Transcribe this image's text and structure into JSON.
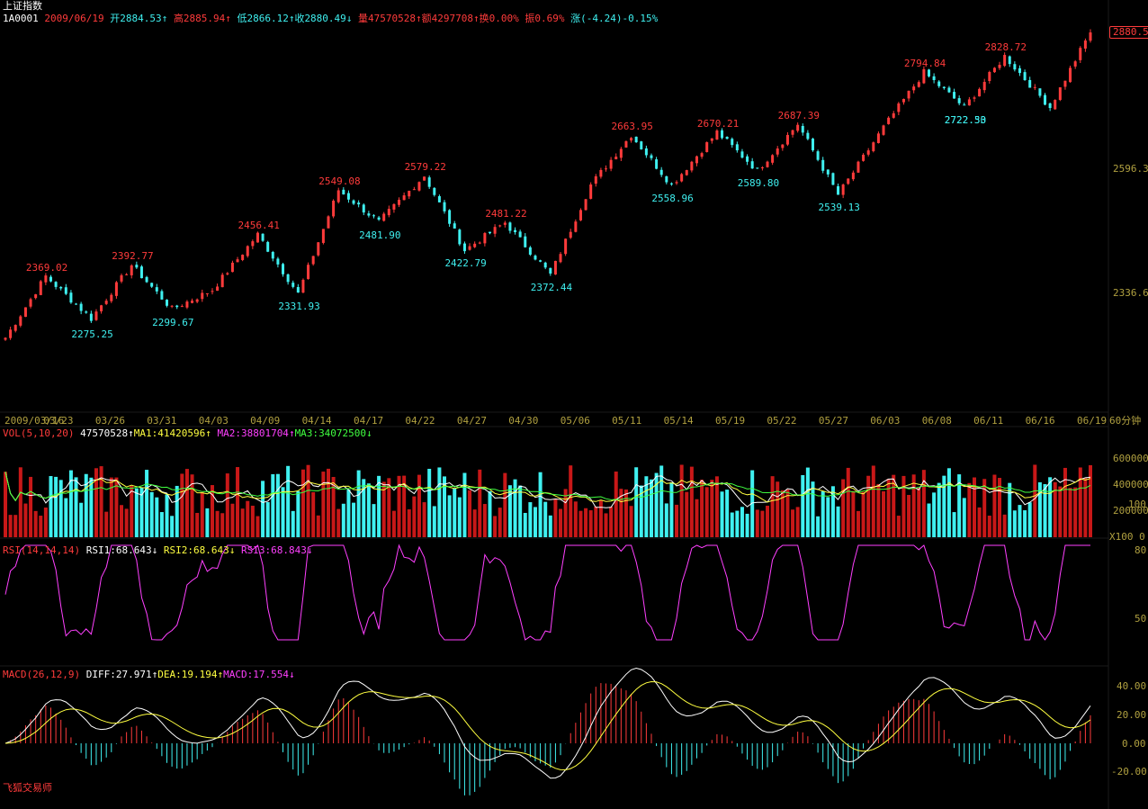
{
  "header": {
    "name": "上证指数",
    "code": "1A0001",
    "date": "2009/06/19",
    "open_label": "开",
    "open": "2884.53",
    "high_label": "高",
    "high": "2885.94",
    "low_label": "低",
    "low": "2866.12",
    "close_label": "收",
    "close": "2880.49",
    "vol_label": "量",
    "vol": "47570528",
    "amount_label": "额",
    "amount": "4297708",
    "turnover_label": "换",
    "turnover": "0.00%",
    "amp_label": "振",
    "amp": "0.69%",
    "change_label": "涨",
    "change": "(-4.24)-0.15%"
  },
  "arrows": {
    "up": "↑",
    "down": "↓"
  },
  "price_badge": "2880.5",
  "price_axis": [
    "2596.3",
    "2336.6"
  ],
  "period_label": "60分钟",
  "dates": [
    "2009/03/16",
    "03/23",
    "03/26",
    "03/31",
    "04/03",
    "04/09",
    "04/14",
    "04/17",
    "04/22",
    "04/27",
    "04/30",
    "05/06",
    "05/11",
    "05/14",
    "05/19",
    "05/22",
    "05/27",
    "06/03",
    "06/08",
    "06/11",
    "06/16",
    "06/19"
  ],
  "peak_labels": [
    "2369.02",
    "2392.77",
    "2456.41",
    "2549.08",
    "2579.22",
    "2481.22",
    "2663.95",
    "2670.21",
    "2687.39",
    "2794.84",
    "2828.72"
  ],
  "trough_labels": [
    "2275.25",
    "2299.67",
    "2331.93",
    "2481.90",
    "2422.79",
    "2372.44",
    "2558.96",
    "2589.80",
    "2539.13",
    "2722.50",
    "2722.33"
  ],
  "vol_panel": {
    "title": "VOL(5,10,20)",
    "value": "47570528",
    "ma1_label": "MA1:",
    "ma1": "41420596",
    "ma2_label": "MA2:",
    "ma2": "38801704",
    "ma3_label": "MA3:",
    "ma3": "34072500",
    "axis": [
      "600000",
      "400000",
      "200000",
      "0"
    ],
    "axis_extra": "100",
    "unit": "X100"
  },
  "rsi_panel": {
    "title": "RSI(14,14,14)",
    "rsi1_label": "RSI1:",
    "rsi1": "68.643",
    "rsi2_label": "RSI2:",
    "rsi2": "68.643",
    "rsi3_label": "RSI3:",
    "rsi3": "68.843",
    "axis": [
      "80",
      "50"
    ]
  },
  "macd_panel": {
    "title": "MACD(26,12,9)",
    "diff_label": "DIFF:",
    "diff": "27.971",
    "dea_label": "DEA:",
    "dea": "19.194",
    "macd_label": "MACD:",
    "macd": "17.554",
    "axis": [
      "40.00",
      "20.00",
      "0.00",
      "-20.00"
    ]
  },
  "footer_brand": "飞狐交易师",
  "colors": {
    "up": "#ff3b3b",
    "down": "#3ff0f0",
    "ma1": "#ffffff",
    "ma2": "#ffff40",
    "ma3": "#40ff40",
    "rsi": "#ff40ff",
    "axis": "#b0a040"
  },
  "chart_data": {
    "type": "candlestick",
    "interval": "60分钟",
    "x_range": [
      "2009/03/16",
      "2009/06/19"
    ],
    "y_axis_ticks": [
      2596.3,
      2336.6
    ],
    "close_path": [
      [
        "03/16",
        2240
      ],
      [
        "03/19",
        2369
      ],
      [
        "03/20",
        2280
      ],
      [
        "03/24",
        2392
      ],
      [
        "03/25",
        2300
      ],
      [
        "03/26",
        2340
      ],
      [
        "04/02",
        2456
      ],
      [
        "04/08",
        2332
      ],
      [
        "04/14",
        2549
      ],
      [
        "04/15",
        2482
      ],
      [
        "04/20",
        2579
      ],
      [
        "04/21",
        2423
      ],
      [
        "04/23",
        2481
      ],
      [
        "04/28",
        2372
      ],
      [
        "05/05",
        2560
      ],
      [
        "05/08",
        2664
      ],
      [
        "05/11",
        2559
      ],
      [
        "05/13",
        2670
      ],
      [
        "05/15",
        2590
      ],
      [
        "05/18",
        2687
      ],
      [
        "05/25",
        2539
      ],
      [
        "06/02",
        2680
      ],
      [
        "06/05",
        2795
      ],
      [
        "06/08",
        2722
      ],
      [
        "06/10",
        2829
      ],
      [
        "06/15",
        2722
      ],
      [
        "06/19",
        2880
      ]
    ],
    "volume_axis": [
      0,
      200000,
      400000,
      600000
    ],
    "rsi_axis": [
      50,
      80
    ],
    "macd_axis": [
      -20,
      0,
      20,
      40
    ]
  }
}
